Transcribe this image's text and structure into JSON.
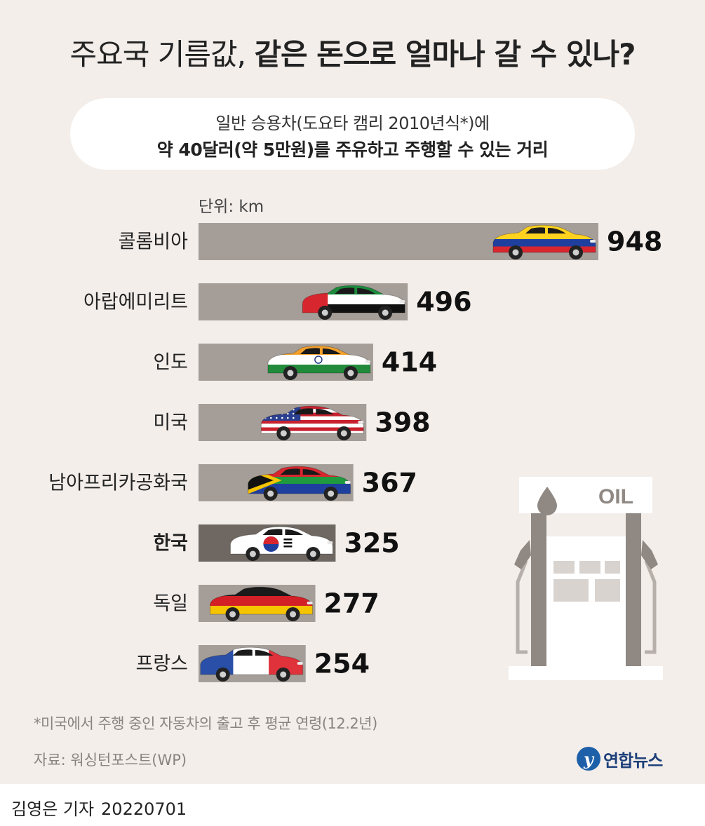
{
  "title_part1": "주요국 기름값,",
  "title_part2": "같은 돈으로 얼마나 갈 수 있나?",
  "subtitle_line1": "일반 승용차(도요타 캠리 2010년식*)에",
  "subtitle_line2": "약 40달러(약 5만원)를 주유하고 주행할 수 있는 거리",
  "footnote": "*미국에서 주행 중인 자동차의 출고 후 평균 연령(12.2년)",
  "source": "자료: 워싱턴포스트(WP)",
  "logo_text": "연합뉴스",
  "byline_name": "김영은 기자",
  "byline_date": "20220701",
  "pump_sign": "OIL",
  "chart_data": {
    "type": "bar",
    "orientation": "horizontal",
    "unit_label": "단위: km",
    "categories": [
      "콜롬비아",
      "아랍에미리트",
      "인도",
      "미국",
      "남아프리카공화국",
      "한국",
      "독일",
      "프랑스"
    ],
    "values": [
      948,
      496,
      414,
      398,
      367,
      325,
      277,
      254
    ],
    "highlight": "한국",
    "bar_color": "#a59e98",
    "highlight_color": "#6f6862",
    "flags": [
      "colombia",
      "uae",
      "india",
      "usa",
      "south-africa",
      "korea",
      "germany",
      "france"
    ]
  }
}
